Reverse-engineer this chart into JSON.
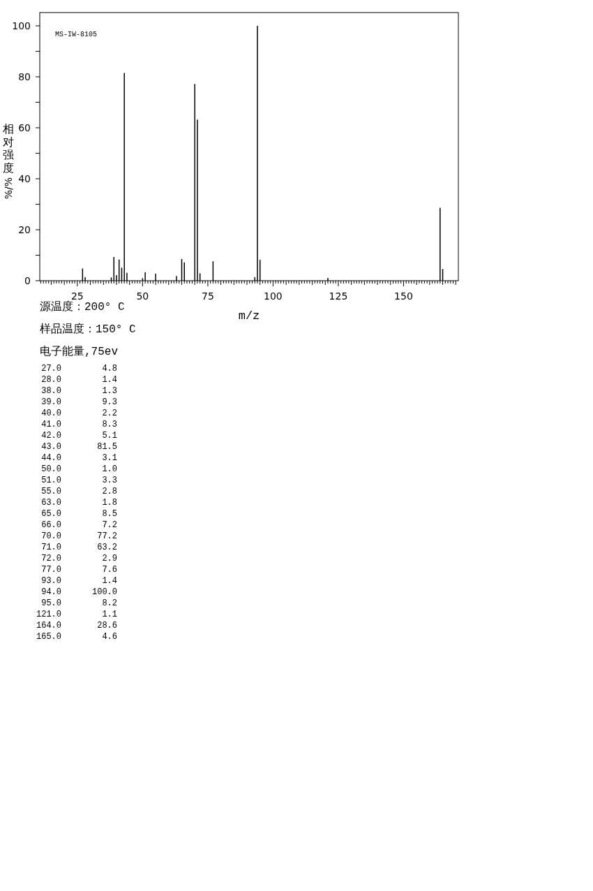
{
  "chart_data": {
    "type": "bar",
    "xlabel": "m/z",
    "ylabel": "相对强度%/%",
    "x": [
      27,
      28,
      38,
      39,
      40,
      41,
      42,
      43,
      44,
      50,
      51,
      55,
      63,
      65,
      66,
      70,
      71,
      72,
      77,
      93,
      94,
      95,
      121,
      164,
      165
    ],
    "values": [
      4.8,
      1.4,
      1.3,
      9.3,
      2.2,
      8.3,
      5.1,
      81.5,
      3.1,
      1.0,
      3.3,
      2.8,
      1.8,
      8.5,
      7.2,
      77.2,
      63.2,
      2.9,
      7.6,
      1.4,
      100.0,
      8.2,
      1.1,
      28.6,
      4.6
    ],
    "color": "#000000",
    "xlim": [
      10.6,
      171
    ],
    "ylim": [
      0,
      105.2
    ],
    "yticks": [
      0,
      {
        "value": 10,
        "label": null
      },
      20,
      {
        "value": 30,
        "label": null
      },
      40,
      {
        "value": 50,
        "label": null
      },
      60,
      {
        "value": 70,
        "label": null
      },
      80,
      {
        "value": 90,
        "label": null
      },
      100
    ],
    "xticks": [
      {
        "value": 11,
        "label": null
      },
      {
        "value": 12,
        "label": null
      },
      {
        "value": 13,
        "label": null
      },
      {
        "value": 14,
        "label": null
      },
      {
        "value": 15,
        "label": null
      },
      {
        "value": 16,
        "label": null
      },
      {
        "value": 17,
        "label": null
      },
      {
        "value": 18,
        "label": null
      },
      {
        "value": 19,
        "label": null
      },
      {
        "value": 20,
        "label": null
      },
      {
        "value": 21,
        "label": null
      },
      {
        "value": 22,
        "label": null
      },
      {
        "value": 23,
        "label": null
      },
      {
        "value": 24,
        "label": null
      },
      25,
      {
        "value": 26,
        "label": null
      },
      {
        "value": 27,
        "label": null
      },
      {
        "value": 28,
        "label": null
      },
      {
        "value": 29,
        "label": null
      },
      {
        "value": 30,
        "label": null
      },
      {
        "value": 31,
        "label": null
      },
      {
        "value": 32,
        "label": null
      },
      {
        "value": 33,
        "label": null
      },
      {
        "value": 34,
        "label": null
      },
      {
        "value": 35,
        "label": null
      },
      {
        "value": 36,
        "label": null
      },
      {
        "value": 37,
        "label": null
      },
      {
        "value": 38,
        "label": null
      },
      {
        "value": 39,
        "label": null
      },
      {
        "value": 40,
        "label": null
      },
      {
        "value": 41,
        "label": null
      },
      {
        "value": 42,
        "label": null
      },
      {
        "value": 43,
        "label": null
      },
      {
        "value": 44,
        "label": null
      },
      {
        "value": 45,
        "label": null
      },
      {
        "value": 46,
        "label": null
      },
      {
        "value": 47,
        "label": null
      },
      {
        "value": 48,
        "label": null
      },
      {
        "value": 49,
        "label": null
      },
      50,
      {
        "value": 51,
        "label": null
      },
      {
        "value": 52,
        "label": null
      },
      {
        "value": 53,
        "label": null
      },
      {
        "value": 54,
        "label": null
      },
      {
        "value": 55,
        "label": null
      },
      {
        "value": 56,
        "label": null
      },
      {
        "value": 57,
        "label": null
      },
      {
        "value": 58,
        "label": null
      },
      {
        "value": 59,
        "label": null
      },
      {
        "value": 60,
        "label": null
      },
      {
        "value": 61,
        "label": null
      },
      {
        "value": 62,
        "label": null
      },
      {
        "value": 63,
        "label": null
      },
      {
        "value": 64,
        "label": null
      },
      {
        "value": 65,
        "label": null
      },
      {
        "value": 66,
        "label": null
      },
      {
        "value": 67,
        "label": null
      },
      {
        "value": 68,
        "label": null
      },
      {
        "value": 69,
        "label": null
      },
      {
        "value": 70,
        "label": null
      },
      {
        "value": 71,
        "label": null
      },
      {
        "value": 72,
        "label": null
      },
      {
        "value": 73,
        "label": null
      },
      {
        "value": 74,
        "label": null
      },
      75,
      {
        "value": 76,
        "label": null
      },
      {
        "value": 77,
        "label": null
      },
      {
        "value": 78,
        "label": null
      },
      {
        "value": 79,
        "label": null
      },
      {
        "value": 80,
        "label": null
      },
      {
        "value": 81,
        "label": null
      },
      {
        "value": 82,
        "label": null
      },
      {
        "value": 83,
        "label": null
      },
      {
        "value": 84,
        "label": null
      },
      {
        "value": 85,
        "label": null
      },
      {
        "value": 86,
        "label": null
      },
      {
        "value": 87,
        "label": null
      },
      {
        "value": 88,
        "label": null
      },
      {
        "value": 89,
        "label": null
      },
      {
        "value": 90,
        "label": null
      },
      {
        "value": 91,
        "label": null
      },
      {
        "value": 92,
        "label": null
      },
      {
        "value": 93,
        "label": null
      },
      {
        "value": 94,
        "label": null
      },
      {
        "value": 95,
        "label": null
      },
      {
        "value": 96,
        "label": null
      },
      {
        "value": 97,
        "label": null
      },
      {
        "value": 98,
        "label": null
      },
      {
        "value": 99,
        "label": null
      },
      100,
      {
        "value": 101,
        "label": null
      },
      {
        "value": 102,
        "label": null
      },
      {
        "value": 103,
        "label": null
      },
      {
        "value": 104,
        "label": null
      },
      {
        "value": 105,
        "label": null
      },
      {
        "value": 106,
        "label": null
      },
      {
        "value": 107,
        "label": null
      },
      {
        "value": 108,
        "label": null
      },
      {
        "value": 109,
        "label": null
      },
      {
        "value": 110,
        "label": null
      },
      {
        "value": 111,
        "label": null
      },
      {
        "value": 112,
        "label": null
      },
      {
        "value": 113,
        "label": null
      },
      {
        "value": 114,
        "label": null
      },
      {
        "value": 115,
        "label": null
      },
      {
        "value": 116,
        "label": null
      },
      {
        "value": 117,
        "label": null
      },
      {
        "value": 118,
        "label": null
      },
      {
        "value": 119,
        "label": null
      },
      {
        "value": 120,
        "label": null
      },
      {
        "value": 121,
        "label": null
      },
      {
        "value": 122,
        "label": null
      },
      {
        "value": 123,
        "label": null
      },
      {
        "value": 124,
        "label": null
      },
      125,
      {
        "value": 126,
        "label": null
      },
      {
        "value": 127,
        "label": null
      },
      {
        "value": 128,
        "label": null
      },
      {
        "value": 129,
        "label": null
      },
      {
        "value": 130,
        "label": null
      },
      {
        "value": 131,
        "label": null
      },
      {
        "value": 132,
        "label": null
      },
      {
        "value": 133,
        "label": null
      },
      {
        "value": 134,
        "label": null
      },
      {
        "value": 135,
        "label": null
      },
      {
        "value": 136,
        "label": null
      },
      {
        "value": 137,
        "label": null
      },
      {
        "value": 138,
        "label": null
      },
      {
        "value": 139,
        "label": null
      },
      {
        "value": 140,
        "label": null
      },
      {
        "value": 141,
        "label": null
      },
      {
        "value": 142,
        "label": null
      },
      {
        "value": 143,
        "label": null
      },
      {
        "value": 144,
        "label": null
      },
      {
        "value": 145,
        "label": null
      },
      {
        "value": 146,
        "label": null
      },
      {
        "value": 147,
        "label": null
      },
      {
        "value": 148,
        "label": null
      },
      {
        "value": 149,
        "label": null
      },
      150,
      {
        "value": 151,
        "label": null
      },
      {
        "value": 152,
        "label": null
      },
      {
        "value": 153,
        "label": null
      },
      {
        "value": 154,
        "label": null
      },
      {
        "value": 155,
        "label": null
      },
      {
        "value": 156,
        "label": null
      },
      {
        "value": 157,
        "label": null
      },
      {
        "value": 158,
        "label": null
      },
      {
        "value": 159,
        "label": null
      },
      {
        "value": 160,
        "label": null
      },
      {
        "value": 161,
        "label": null
      },
      {
        "value": 162,
        "label": null
      },
      {
        "value": 163,
        "label": null
      },
      {
        "value": 164,
        "label": null
      },
      {
        "value": 165,
        "label": null
      },
      {
        "value": 166,
        "label": null
      },
      {
        "value": 167,
        "label": null
      },
      {
        "value": 168,
        "label": null
      },
      {
        "value": 169,
        "label": null
      },
      {
        "value": 170,
        "label": null
      }
    ],
    "annotations": [
      "MS-IW-8105",
      "源温度：200° C",
      "样品温度：150° C",
      "电子能量,75ev",
      "27.0",
      "4.8",
      "28.0",
      "1.4",
      "38.0",
      "1.3",
      "39.0",
      "9.3",
      "40.0",
      "2.2",
      "41.0",
      "8.3",
      "42.0",
      "5.1",
      "43.0",
      "81.5",
      "44.0",
      "3.1",
      "50.0",
      "1.0",
      "51.0",
      "3.3",
      "55.0",
      "2.8",
      "63.0",
      "1.8",
      "65.0",
      "8.5",
      "66.0",
      "7.2",
      "70.0",
      "77.2",
      "71.0",
      "63.2",
      "72.0",
      "2.9",
      "77.0",
      "7.6",
      "93.0",
      "1.4",
      "94.0",
      "100.0",
      "95.0",
      "8.2",
      "121.0",
      "1.1",
      "164.0",
      "28.6",
      "165.0",
      "4.6"
    ]
  }
}
